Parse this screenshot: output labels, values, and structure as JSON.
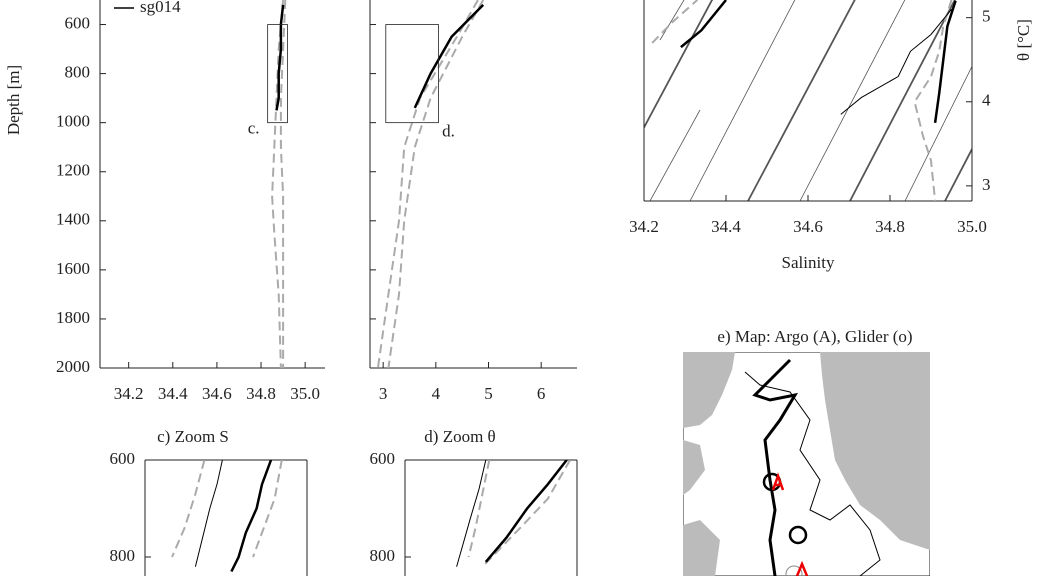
{
  "chart_data": [
    {
      "type": "line",
      "ylabel": "Depth [m]",
      "xlim": [
        34.07,
        35.09
      ],
      "ylim": [
        500,
        2000
      ],
      "y_inverted": true,
      "xticks": [
        34.2,
        34.4,
        34.6,
        34.8,
        {
          "value": 35,
          "label": "35.0"
        }
      ],
      "yticks": [
        600,
        800,
        1000,
        1200,
        1400,
        1600,
        1800,
        2000
      ],
      "show_ytick_labels": true,
      "legend": "upper left",
      "annotation": "c.",
      "series": [
        {
          "color": "#aaaaaa",
          "style": "dashed",
          "linewidth": 2,
          "x": [
            34.9,
            34.88,
            34.87,
            34.86,
            34.85,
            34.86,
            34.88,
            34.89
          ],
          "y": [
            500,
            700,
            900,
            1100,
            1300,
            1450,
            1700,
            2000
          ]
        },
        {
          "color": "#aaaaaa",
          "style": "dashed",
          "linewidth": 2,
          "x": [
            34.91,
            34.9,
            34.89,
            34.89,
            34.9,
            34.9,
            34.9,
            34.9
          ],
          "y": [
            500,
            700,
            900,
            1100,
            1300,
            1450,
            1700,
            2000
          ]
        },
        {
          "name": "sg014",
          "color": "#000000",
          "style": "solid",
          "linewidth": 2.5,
          "x": [
            34.9,
            34.89,
            34.89,
            34.88,
            34.88,
            34.87
          ],
          "y": [
            520,
            600,
            700,
            800,
            900,
            950
          ]
        }
      ]
    },
    {
      "type": "line",
      "xlim": [
        2.75,
        6.68
      ],
      "ylim": [
        500,
        2000
      ],
      "y_inverted": true,
      "xticks": [
        3,
        4,
        5,
        6
      ],
      "yticks": [
        600,
        800,
        1000,
        1200,
        1400,
        1600,
        1800,
        2000
      ],
      "show_ytick_labels": false,
      "annotation": "d.",
      "series": [
        {
          "color": "#aaaaaa",
          "style": "dashed",
          "linewidth": 2,
          "x": [
            4.8,
            4.4,
            3.7,
            3.4,
            3.3,
            3.1,
            2.9
          ],
          "y": [
            500,
            650,
            900,
            1100,
            1400,
            1700,
            2000
          ]
        },
        {
          "color": "#aaaaaa",
          "style": "dashed",
          "linewidth": 2,
          "x": [
            4.9,
            4.5,
            3.9,
            3.6,
            3.4,
            3.3,
            3.1
          ],
          "y": [
            500,
            650,
            900,
            1100,
            1400,
            1700,
            2000
          ]
        },
        {
          "color": "#000000",
          "style": "solid",
          "linewidth": 2.5,
          "x": [
            4.9,
            4.3,
            3.9,
            3.6
          ],
          "y": [
            520,
            650,
            800,
            940
          ]
        }
      ]
    },
    {
      "type": "line",
      "xlabel": "Salinity",
      "ylabel": "θ [°C]",
      "xlim": [
        34.2,
        35.0
      ],
      "ylim": [
        2.82,
        5.21
      ],
      "y_side": "right",
      "xticks": [
        34.2,
        34.4,
        34.6,
        34.8,
        {
          "value": 35,
          "label": "35.0"
        }
      ],
      "yticks": [
        3,
        4,
        5
      ],
      "show_ytick_labels": true,
      "series": [
        {
          "color": "#aaaaaa",
          "style": "dashed",
          "linewidth": 2,
          "x": [
            34.22,
            34.27,
            34.33
          ],
          "y": [
            4.7,
            4.95,
            5.21
          ]
        },
        {
          "color": "#000000",
          "style": "solid",
          "linewidth": 2.5,
          "x": [
            34.29,
            34.34,
            34.4
          ],
          "y": [
            4.65,
            4.85,
            5.21
          ]
        },
        {
          "color": "#aaaaaa",
          "style": "dashed",
          "linewidth": 2,
          "x": [
            34.95,
            34.93,
            34.92,
            34.9,
            34.86,
            34.88,
            34.9,
            34.91
          ],
          "y": [
            5.21,
            4.9,
            4.6,
            4.3,
            4.0,
            3.6,
            3.3,
            2.82
          ]
        },
        {
          "color": "#000000",
          "style": "solid",
          "linewidth": 2.5,
          "x": [
            34.96,
            34.94,
            34.93,
            34.92,
            34.91
          ],
          "y": [
            5.2,
            4.9,
            4.5,
            4.1,
            3.75
          ]
        },
        {
          "color": "#000000",
          "style": "solid",
          "linewidth": 1,
          "x": [
            34.95,
            34.9,
            34.85,
            34.82,
            34.73,
            34.68
          ],
          "y": [
            5.1,
            4.8,
            4.6,
            4.3,
            4.05,
            3.85
          ]
        }
      ]
    },
    {
      "type": "line",
      "title": "c) Zoom S",
      "xlim": [
        34.83,
        34.92
      ],
      "ylim": [
        600,
        1000
      ],
      "y_inverted": true,
      "xticks": [],
      "yticks": [
        600,
        800
      ],
      "show_ytick_labels": true,
      "series": [
        {
          "color": "#aaaaaa",
          "style": "dashed",
          "linewidth": 2,
          "x": [
            34.863,
            34.858,
            34.852,
            34.845
          ],
          "y": [
            600,
            670,
            740,
            800
          ]
        },
        {
          "color": "#000000",
          "style": "solid",
          "linewidth": 1,
          "x": [
            34.873,
            34.87,
            34.866,
            34.862,
            34.858
          ],
          "y": [
            600,
            650,
            700,
            760,
            820
          ]
        },
        {
          "color": "#000000",
          "style": "solid",
          "linewidth": 2.5,
          "x": [
            34.9,
            34.895,
            34.892,
            34.886,
            34.882,
            34.878
          ],
          "y": [
            600,
            650,
            700,
            750,
            800,
            830
          ]
        },
        {
          "color": "#aaaaaa",
          "style": "dashed",
          "linewidth": 2,
          "x": [
            34.906,
            34.902,
            34.896,
            34.89
          ],
          "y": [
            600,
            680,
            740,
            800
          ]
        }
      ]
    },
    {
      "type": "line",
      "title": "d) Zoom θ",
      "xlim": [
        3.05,
        4.05
      ],
      "ylim": [
        600,
        1000
      ],
      "y_inverted": true,
      "xticks": [],
      "yticks": [
        600,
        800
      ],
      "show_ytick_labels": true,
      "series": [
        {
          "color": "#aaaaaa",
          "style": "dashed",
          "linewidth": 2,
          "x": [
            3.54,
            3.5,
            3.46,
            3.42
          ],
          "y": [
            600,
            670,
            740,
            800
          ]
        },
        {
          "color": "#000000",
          "style": "solid",
          "linewidth": 1,
          "x": [
            3.52,
            3.48,
            3.43,
            3.39,
            3.35
          ],
          "y": [
            600,
            660,
            720,
            770,
            820
          ]
        },
        {
          "color": "#aaaaaa",
          "style": "dashed",
          "linewidth": 2,
          "x": [
            4.01,
            3.88,
            3.72,
            3.5
          ],
          "y": [
            600,
            680,
            740,
            820
          ]
        },
        {
          "color": "#000000",
          "style": "solid",
          "linewidth": 2.5,
          "x": [
            3.99,
            3.88,
            3.76,
            3.64,
            3.52
          ],
          "y": [
            600,
            650,
            700,
            760,
            810
          ]
        }
      ]
    },
    {
      "type": "map",
      "title": "e) Map: Argo (A), Glider (o)"
    }
  ]
}
